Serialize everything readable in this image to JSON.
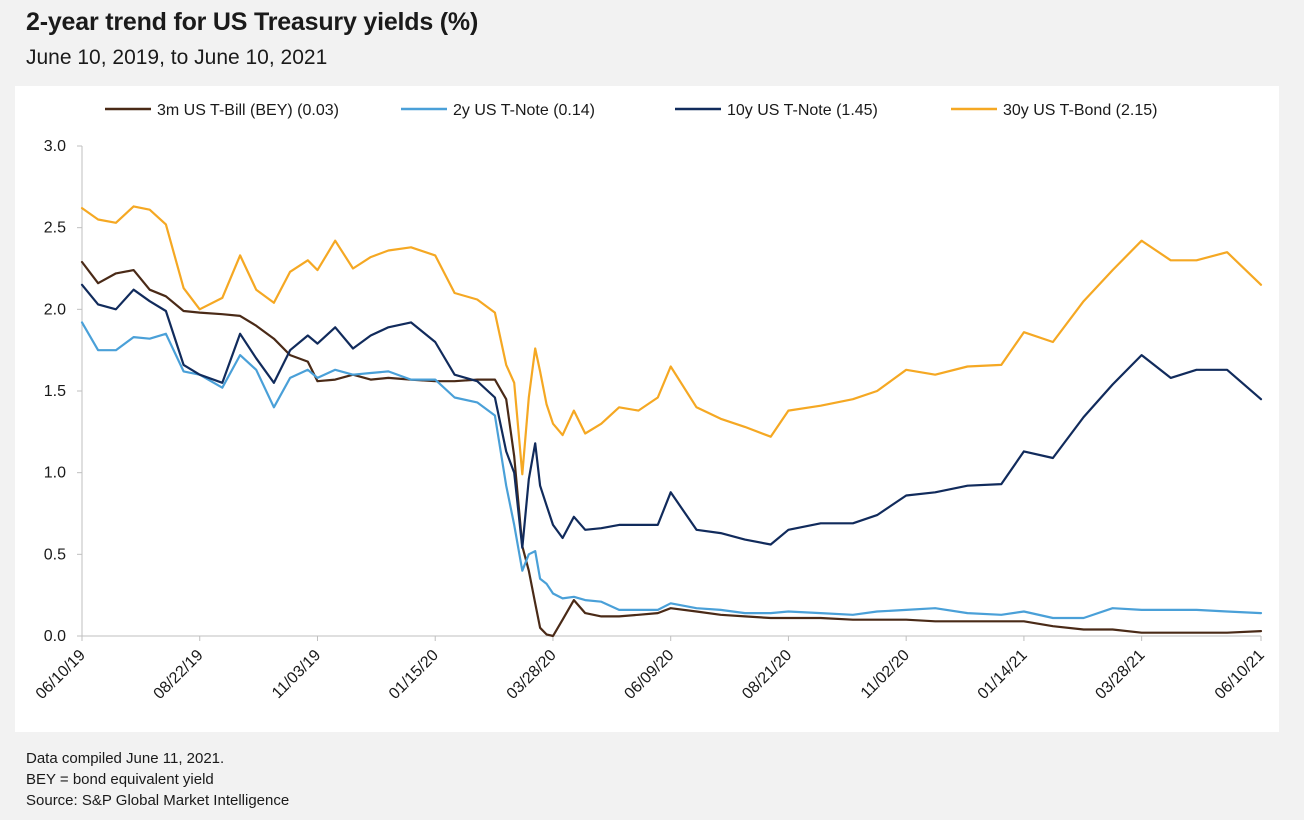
{
  "header": {
    "title": "2-year trend for US Treasury yields (%)",
    "subtitle": "June 10, 2019, to June 10, 2021"
  },
  "footer": {
    "notes": [
      "Data compiled June 11, 2021.",
      "BEY = bond equivalent yield",
      "Source: S&P Global Market Intelligence"
    ]
  },
  "chart_data": {
    "type": "line",
    "title": "2-year trend for US Treasury yields (%)",
    "subtitle": "June 10, 2019, to June 10, 2021",
    "xlabel": "",
    "ylabel": "",
    "ylim": [
      0,
      3.0
    ],
    "yticks": [
      "0.0",
      "0.5",
      "1.0",
      "1.5",
      "2.0",
      "2.5",
      "3.0"
    ],
    "xlim": [
      "2019-06-10",
      "2021-06-10"
    ],
    "xticks": [
      {
        "date": "2019-06-10",
        "label": "06/10/19"
      },
      {
        "date": "2019-08-22",
        "label": "08/22/19"
      },
      {
        "date": "2019-11-03",
        "label": "11/03/19"
      },
      {
        "date": "2020-01-15",
        "label": "01/15/20"
      },
      {
        "date": "2020-03-28",
        "label": "03/28/20"
      },
      {
        "date": "2020-06-09",
        "label": "06/09/20"
      },
      {
        "date": "2020-08-21",
        "label": "08/21/20"
      },
      {
        "date": "2020-11-02",
        "label": "11/02/20"
      },
      {
        "date": "2021-01-14",
        "label": "01/14/21"
      },
      {
        "date": "2021-03-28",
        "label": "03/28/21"
      },
      {
        "date": "2021-06-10",
        "label": "06/10/21"
      }
    ],
    "grid": false,
    "legend_position": "top",
    "series": [
      {
        "name": "3m US T-Bill (BEY) (0.03)",
        "color": "#4a2a17",
        "points": [
          [
            "2019-06-10",
            2.29
          ],
          [
            "2019-06-20",
            2.16
          ],
          [
            "2019-07-01",
            2.22
          ],
          [
            "2019-07-12",
            2.24
          ],
          [
            "2019-07-22",
            2.12
          ],
          [
            "2019-08-01",
            2.08
          ],
          [
            "2019-08-12",
            1.99
          ],
          [
            "2019-08-22",
            1.98
          ],
          [
            "2019-09-05",
            1.97
          ],
          [
            "2019-09-16",
            1.96
          ],
          [
            "2019-09-26",
            1.9
          ],
          [
            "2019-10-07",
            1.82
          ],
          [
            "2019-10-17",
            1.72
          ],
          [
            "2019-10-28",
            1.68
          ],
          [
            "2019-11-03",
            1.56
          ],
          [
            "2019-11-14",
            1.57
          ],
          [
            "2019-11-25",
            1.6
          ],
          [
            "2019-12-06",
            1.57
          ],
          [
            "2019-12-17",
            1.58
          ],
          [
            "2019-12-31",
            1.57
          ],
          [
            "2020-01-15",
            1.56
          ],
          [
            "2020-01-27",
            1.56
          ],
          [
            "2020-02-10",
            1.57
          ],
          [
            "2020-02-21",
            1.57
          ],
          [
            "2020-02-28",
            1.45
          ],
          [
            "2020-03-04",
            1.1
          ],
          [
            "2020-03-09",
            0.55
          ],
          [
            "2020-03-13",
            0.4
          ],
          [
            "2020-03-17",
            0.2
          ],
          [
            "2020-03-20",
            0.05
          ],
          [
            "2020-03-24",
            0.01
          ],
          [
            "2020-03-28",
            0.0
          ],
          [
            "2020-04-03",
            0.1
          ],
          [
            "2020-04-10",
            0.22
          ],
          [
            "2020-04-17",
            0.14
          ],
          [
            "2020-04-27",
            0.12
          ],
          [
            "2020-05-08",
            0.12
          ],
          [
            "2020-05-20",
            0.13
          ],
          [
            "2020-06-01",
            0.14
          ],
          [
            "2020-06-09",
            0.17
          ],
          [
            "2020-06-25",
            0.15
          ],
          [
            "2020-07-10",
            0.13
          ],
          [
            "2020-07-25",
            0.12
          ],
          [
            "2020-08-10",
            0.11
          ],
          [
            "2020-08-21",
            0.11
          ],
          [
            "2020-09-10",
            0.11
          ],
          [
            "2020-09-30",
            0.1
          ],
          [
            "2020-10-15",
            0.1
          ],
          [
            "2020-11-02",
            0.1
          ],
          [
            "2020-11-20",
            0.09
          ],
          [
            "2020-12-10",
            0.09
          ],
          [
            "2020-12-31",
            0.09
          ],
          [
            "2021-01-14",
            0.09
          ],
          [
            "2021-02-01",
            0.06
          ],
          [
            "2021-02-20",
            0.04
          ],
          [
            "2021-03-10",
            0.04
          ],
          [
            "2021-03-28",
            0.02
          ],
          [
            "2021-04-15",
            0.02
          ],
          [
            "2021-05-01",
            0.02
          ],
          [
            "2021-05-20",
            0.02
          ],
          [
            "2021-06-10",
            0.03
          ]
        ]
      },
      {
        "name": "2y US T-Note (0.14)",
        "color": "#4aa0d8",
        "points": [
          [
            "2019-06-10",
            1.92
          ],
          [
            "2019-06-20",
            1.75
          ],
          [
            "2019-07-01",
            1.75
          ],
          [
            "2019-07-12",
            1.83
          ],
          [
            "2019-07-22",
            1.82
          ],
          [
            "2019-08-01",
            1.85
          ],
          [
            "2019-08-12",
            1.62
          ],
          [
            "2019-08-22",
            1.6
          ],
          [
            "2019-09-05",
            1.52
          ],
          [
            "2019-09-16",
            1.72
          ],
          [
            "2019-09-26",
            1.63
          ],
          [
            "2019-10-07",
            1.4
          ],
          [
            "2019-10-17",
            1.58
          ],
          [
            "2019-10-28",
            1.63
          ],
          [
            "2019-11-03",
            1.58
          ],
          [
            "2019-11-14",
            1.63
          ],
          [
            "2019-11-25",
            1.6
          ],
          [
            "2019-12-06",
            1.61
          ],
          [
            "2019-12-17",
            1.62
          ],
          [
            "2019-12-31",
            1.57
          ],
          [
            "2020-01-15",
            1.57
          ],
          [
            "2020-01-27",
            1.46
          ],
          [
            "2020-02-10",
            1.43
          ],
          [
            "2020-02-21",
            1.35
          ],
          [
            "2020-02-28",
            0.92
          ],
          [
            "2020-03-04",
            0.68
          ],
          [
            "2020-03-09",
            0.4
          ],
          [
            "2020-03-13",
            0.5
          ],
          [
            "2020-03-17",
            0.52
          ],
          [
            "2020-03-20",
            0.35
          ],
          [
            "2020-03-24",
            0.32
          ],
          [
            "2020-03-28",
            0.26
          ],
          [
            "2020-04-03",
            0.23
          ],
          [
            "2020-04-10",
            0.24
          ],
          [
            "2020-04-17",
            0.22
          ],
          [
            "2020-04-27",
            0.21
          ],
          [
            "2020-05-08",
            0.16
          ],
          [
            "2020-05-20",
            0.16
          ],
          [
            "2020-06-01",
            0.16
          ],
          [
            "2020-06-09",
            0.2
          ],
          [
            "2020-06-25",
            0.17
          ],
          [
            "2020-07-10",
            0.16
          ],
          [
            "2020-07-25",
            0.14
          ],
          [
            "2020-08-10",
            0.14
          ],
          [
            "2020-08-21",
            0.15
          ],
          [
            "2020-09-10",
            0.14
          ],
          [
            "2020-09-30",
            0.13
          ],
          [
            "2020-10-15",
            0.15
          ],
          [
            "2020-11-02",
            0.16
          ],
          [
            "2020-11-20",
            0.17
          ],
          [
            "2020-12-10",
            0.14
          ],
          [
            "2020-12-31",
            0.13
          ],
          [
            "2021-01-14",
            0.15
          ],
          [
            "2021-02-01",
            0.11
          ],
          [
            "2021-02-20",
            0.11
          ],
          [
            "2021-03-10",
            0.17
          ],
          [
            "2021-03-28",
            0.16
          ],
          [
            "2021-04-15",
            0.16
          ],
          [
            "2021-05-01",
            0.16
          ],
          [
            "2021-05-20",
            0.15
          ],
          [
            "2021-06-10",
            0.14
          ]
        ]
      },
      {
        "name": "10y US T-Note (1.45)",
        "color": "#112b5c",
        "points": [
          [
            "2019-06-10",
            2.15
          ],
          [
            "2019-06-20",
            2.03
          ],
          [
            "2019-07-01",
            2.0
          ],
          [
            "2019-07-12",
            2.12
          ],
          [
            "2019-07-22",
            2.05
          ],
          [
            "2019-08-01",
            1.99
          ],
          [
            "2019-08-12",
            1.66
          ],
          [
            "2019-08-22",
            1.6
          ],
          [
            "2019-09-05",
            1.55
          ],
          [
            "2019-09-16",
            1.85
          ],
          [
            "2019-09-26",
            1.7
          ],
          [
            "2019-10-07",
            1.55
          ],
          [
            "2019-10-17",
            1.75
          ],
          [
            "2019-10-28",
            1.84
          ],
          [
            "2019-11-03",
            1.79
          ],
          [
            "2019-11-14",
            1.89
          ],
          [
            "2019-11-25",
            1.76
          ],
          [
            "2019-12-06",
            1.84
          ],
          [
            "2019-12-17",
            1.89
          ],
          [
            "2019-12-31",
            1.92
          ],
          [
            "2020-01-15",
            1.8
          ],
          [
            "2020-01-27",
            1.6
          ],
          [
            "2020-02-10",
            1.56
          ],
          [
            "2020-02-21",
            1.46
          ],
          [
            "2020-02-28",
            1.13
          ],
          [
            "2020-03-04",
            1.0
          ],
          [
            "2020-03-09",
            0.54
          ],
          [
            "2020-03-13",
            0.96
          ],
          [
            "2020-03-17",
            1.18
          ],
          [
            "2020-03-20",
            0.92
          ],
          [
            "2020-03-24",
            0.8
          ],
          [
            "2020-03-28",
            0.68
          ],
          [
            "2020-04-03",
            0.6
          ],
          [
            "2020-04-10",
            0.73
          ],
          [
            "2020-04-17",
            0.65
          ],
          [
            "2020-04-27",
            0.66
          ],
          [
            "2020-05-08",
            0.68
          ],
          [
            "2020-05-20",
            0.68
          ],
          [
            "2020-06-01",
            0.68
          ],
          [
            "2020-06-09",
            0.88
          ],
          [
            "2020-06-25",
            0.65
          ],
          [
            "2020-07-10",
            0.63
          ],
          [
            "2020-07-25",
            0.59
          ],
          [
            "2020-08-10",
            0.56
          ],
          [
            "2020-08-21",
            0.65
          ],
          [
            "2020-09-10",
            0.69
          ],
          [
            "2020-09-30",
            0.69
          ],
          [
            "2020-10-15",
            0.74
          ],
          [
            "2020-11-02",
            0.86
          ],
          [
            "2020-11-20",
            0.88
          ],
          [
            "2020-12-10",
            0.92
          ],
          [
            "2020-12-31",
            0.93
          ],
          [
            "2021-01-14",
            1.13
          ],
          [
            "2021-02-01",
            1.09
          ],
          [
            "2021-02-20",
            1.34
          ],
          [
            "2021-03-10",
            1.54
          ],
          [
            "2021-03-28",
            1.72
          ],
          [
            "2021-04-15",
            1.58
          ],
          [
            "2021-05-01",
            1.63
          ],
          [
            "2021-05-20",
            1.63
          ],
          [
            "2021-06-10",
            1.45
          ]
        ]
      },
      {
        "name": "30y US T-Bond (2.15)",
        "color": "#f5a823",
        "points": [
          [
            "2019-06-10",
            2.62
          ],
          [
            "2019-06-20",
            2.55
          ],
          [
            "2019-07-01",
            2.53
          ],
          [
            "2019-07-12",
            2.63
          ],
          [
            "2019-07-22",
            2.61
          ],
          [
            "2019-08-01",
            2.52
          ],
          [
            "2019-08-12",
            2.13
          ],
          [
            "2019-08-22",
            2.0
          ],
          [
            "2019-09-05",
            2.07
          ],
          [
            "2019-09-16",
            2.33
          ],
          [
            "2019-09-26",
            2.12
          ],
          [
            "2019-10-07",
            2.04
          ],
          [
            "2019-10-17",
            2.23
          ],
          [
            "2019-10-28",
            2.3
          ],
          [
            "2019-11-03",
            2.24
          ],
          [
            "2019-11-14",
            2.42
          ],
          [
            "2019-11-25",
            2.25
          ],
          [
            "2019-12-06",
            2.32
          ],
          [
            "2019-12-17",
            2.36
          ],
          [
            "2019-12-31",
            2.38
          ],
          [
            "2020-01-15",
            2.33
          ],
          [
            "2020-01-27",
            2.1
          ],
          [
            "2020-02-10",
            2.06
          ],
          [
            "2020-02-21",
            1.98
          ],
          [
            "2020-02-28",
            1.66
          ],
          [
            "2020-03-04",
            1.55
          ],
          [
            "2020-03-09",
            0.99
          ],
          [
            "2020-03-13",
            1.46
          ],
          [
            "2020-03-17",
            1.76
          ],
          [
            "2020-03-20",
            1.62
          ],
          [
            "2020-03-24",
            1.42
          ],
          [
            "2020-03-28",
            1.3
          ],
          [
            "2020-04-03",
            1.23
          ],
          [
            "2020-04-10",
            1.38
          ],
          [
            "2020-04-17",
            1.24
          ],
          [
            "2020-04-27",
            1.3
          ],
          [
            "2020-05-08",
            1.4
          ],
          [
            "2020-05-20",
            1.38
          ],
          [
            "2020-06-01",
            1.46
          ],
          [
            "2020-06-09",
            1.65
          ],
          [
            "2020-06-25",
            1.4
          ],
          [
            "2020-07-10",
            1.33
          ],
          [
            "2020-07-25",
            1.28
          ],
          [
            "2020-08-10",
            1.22
          ],
          [
            "2020-08-21",
            1.38
          ],
          [
            "2020-09-10",
            1.41
          ],
          [
            "2020-09-30",
            1.45
          ],
          [
            "2020-10-15",
            1.5
          ],
          [
            "2020-11-02",
            1.63
          ],
          [
            "2020-11-20",
            1.6
          ],
          [
            "2020-12-10",
            1.65
          ],
          [
            "2020-12-31",
            1.66
          ],
          [
            "2021-01-14",
            1.86
          ],
          [
            "2021-02-01",
            1.8
          ],
          [
            "2021-02-20",
            2.05
          ],
          [
            "2021-03-10",
            2.24
          ],
          [
            "2021-03-28",
            2.42
          ],
          [
            "2021-04-15",
            2.3
          ],
          [
            "2021-05-01",
            2.3
          ],
          [
            "2021-05-20",
            2.35
          ],
          [
            "2021-06-10",
            2.15
          ]
        ]
      }
    ]
  }
}
